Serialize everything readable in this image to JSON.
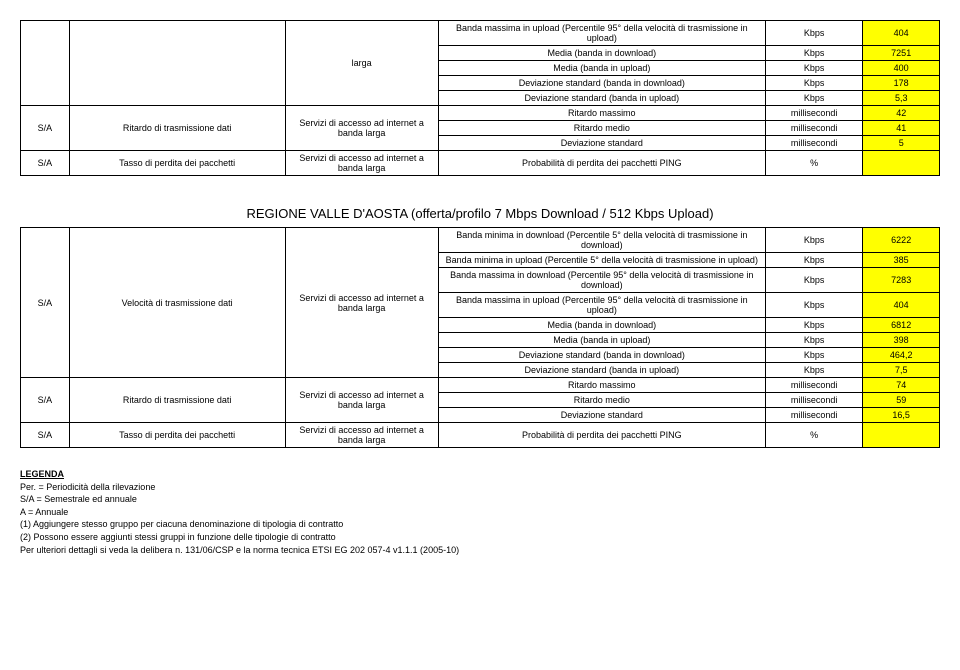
{
  "table1": {
    "rows": [
      {
        "c1": "",
        "c2": "",
        "c3": "larga",
        "desc": "Banda massima in upload (Percentile 95° della velocità di trasmissione in upload)",
        "unit": "Kbps",
        "val": "404"
      },
      {
        "c1": "",
        "c2": "",
        "c3": "",
        "desc": "Media (banda in download)",
        "unit": "Kbps",
        "val": "7251"
      },
      {
        "c1": "",
        "c2": "",
        "c3": "",
        "desc": "Media (banda in upload)",
        "unit": "Kbps",
        "val": "400"
      },
      {
        "c1": "",
        "c2": "",
        "c3": "",
        "desc": "Deviazione standard (banda in download)",
        "unit": "Kbps",
        "val": "178"
      },
      {
        "c1": "",
        "c2": "",
        "c3": "",
        "desc": "Deviazione standard (banda in upload)",
        "unit": "Kbps",
        "val": "5,3"
      },
      {
        "c1": "S/A",
        "c2": "Ritardo di trasmissione dati",
        "c3": "Servizi di accesso ad internet a banda larga",
        "desc": "Ritardo massimo",
        "unit": "millisecondi",
        "val": "42"
      },
      {
        "c1": "",
        "c2": "",
        "c3": "",
        "desc": "Ritardo medio",
        "unit": "millisecondi",
        "val": "41"
      },
      {
        "c1": "",
        "c2": "",
        "c3": "",
        "desc": "Deviazione standard",
        "unit": "millisecondi",
        "val": "5"
      },
      {
        "c1": "S/A",
        "c2": "Tasso di perdita dei pacchetti",
        "c3": "Servizi di accesso ad internet a banda larga",
        "desc": "Probabilità di perdita dei pacchetti PING",
        "unit": "%",
        "val": ""
      }
    ]
  },
  "table2": {
    "title": "REGIONE VALLE D'AOSTA (offerta/profilo 7 Mbps Download / 512 Kbps Upload)",
    "rows": [
      {
        "c1": "S/A",
        "c2": "Velocità di trasmissione dati",
        "c3": "Servizi di accesso ad internet a banda larga",
        "desc": "Banda minima in download (Percentile 5° della velocità di trasmissione in download)",
        "unit": "Kbps",
        "val": "6222"
      },
      {
        "c1": "",
        "c2": "",
        "c3": "",
        "desc": "Banda minima in upload (Percentile 5° della velocità di trasmissione in upload)",
        "unit": "Kbps",
        "val": "385"
      },
      {
        "c1": "",
        "c2": "",
        "c3": "",
        "desc": "Banda massima in download (Percentile 95° della velocità di trasmissione in download)",
        "unit": "Kbps",
        "val": "7283"
      },
      {
        "c1": "",
        "c2": "",
        "c3": "",
        "desc": "Banda massima in upload (Percentile 95° della velocità di trasmissione in upload)",
        "unit": "Kbps",
        "val": "404"
      },
      {
        "c1": "",
        "c2": "",
        "c3": "",
        "desc": "Media (banda in download)",
        "unit": "Kbps",
        "val": "6812"
      },
      {
        "c1": "",
        "c2": "",
        "c3": "",
        "desc": "Media (banda in upload)",
        "unit": "Kbps",
        "val": "398"
      },
      {
        "c1": "",
        "c2": "",
        "c3": "",
        "desc": "Deviazione standard (banda in download)",
        "unit": "Kbps",
        "val": "464,2"
      },
      {
        "c1": "",
        "c2": "",
        "c3": "",
        "desc": "Deviazione standard (banda in upload)",
        "unit": "Kbps",
        "val": "7,5"
      },
      {
        "c1": "S/A",
        "c2": "Ritardo di trasmissione dati",
        "c3": "Servizi di accesso ad internet a banda larga",
        "desc": "Ritardo massimo",
        "unit": "millisecondi",
        "val": "74"
      },
      {
        "c1": "",
        "c2": "",
        "c3": "",
        "desc": "Ritardo medio",
        "unit": "millisecondi",
        "val": "59"
      },
      {
        "c1": "",
        "c2": "",
        "c3": "",
        "desc": "Deviazione standard",
        "unit": "millisecondi",
        "val": "16,5"
      },
      {
        "c1": "S/A",
        "c2": "Tasso di perdita dei pacchetti",
        "c3": "Servizi di accesso ad internet a banda larga",
        "desc": "Probabilità di perdita dei pacchetti PING",
        "unit": "%",
        "val": ""
      }
    ]
  },
  "legend": {
    "title": "LEGENDA",
    "lines": [
      "Per. = Periodicità della rilevazione",
      "S/A = Semestrale ed annuale",
      "A   = Annuale",
      "(1) Aggiungere stesso gruppo per ciacuna denominazione di tipologia di contratto",
      "(2) Possono essere aggiunti stessi gruppi in funzione delle tipologie di contratto",
      "Per ulteriori dettagli si veda la delibera n. 131/06/CSP e la norma tecnica ETSI EG 202 057-4 v1.1.1 (2005-10)"
    ]
  }
}
